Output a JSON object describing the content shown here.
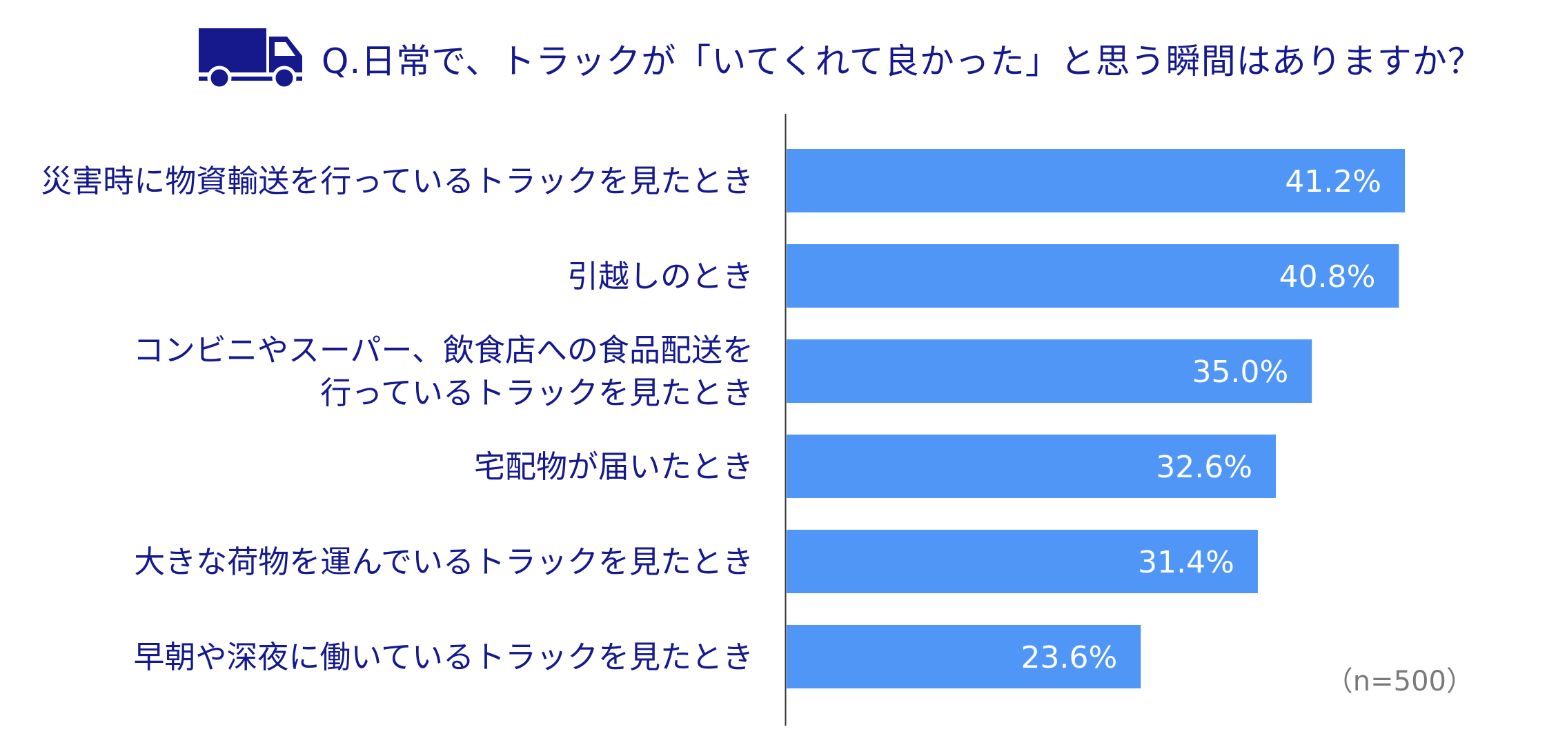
{
  "chart_data": {
    "type": "bar",
    "orientation": "horizontal",
    "title": "Q.日常で、トラックが「いてくれて良かった」と思う瞬間はありますか？",
    "categories": [
      [
        "災害時に物資輸送を行っているトラックを見たとき"
      ],
      [
        "引越しのとき"
      ],
      [
        "コンビニやスーパー、飲食店への食品配送を",
        "行っているトラックを見たとき"
      ],
      [
        "宅配物が届いたとき"
      ],
      [
        "大きな荷物を運んでいるトラックを見たとき"
      ],
      [
        "早朝や深夜に働いているトラックを見たとき"
      ]
    ],
    "values": [
      41.2,
      40.8,
      35.0,
      32.6,
      31.4,
      23.6
    ],
    "value_labels": [
      "41.2%",
      "40.8%",
      "35.0%",
      "32.6%",
      "31.4%",
      "23.6%"
    ],
    "unit": "%",
    "bar_color": "#4f96f7",
    "note": "（n=500）",
    "grid": false
  },
  "colors": {
    "title": "#15198c",
    "category_text": "#15198c",
    "value_text": "#ffffff",
    "axis": "#333333",
    "note": "#7a7a7a",
    "icon": "#15198c"
  },
  "icon": "truck-icon"
}
